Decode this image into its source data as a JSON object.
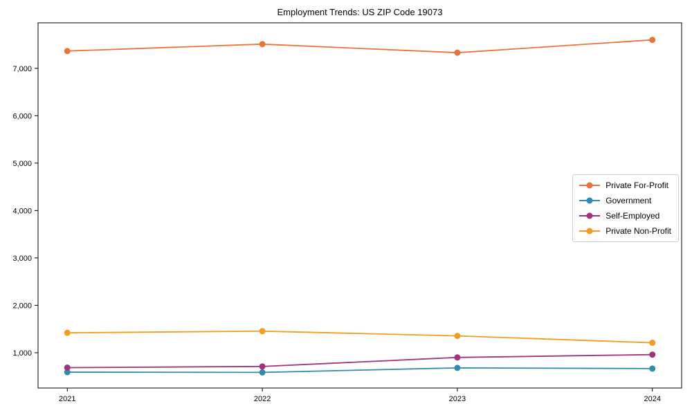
{
  "title": "Employment Trends: US ZIP Code 19073",
  "chart_data": {
    "type": "line",
    "title": "Employment Trends: US ZIP Code 19073",
    "xlabel": "",
    "ylabel": "",
    "x": [
      2021,
      2022,
      2023,
      2024
    ],
    "series": [
      {
        "name": "Private For-Profit",
        "color": "#e8743b",
        "values": [
          7365,
          7510,
          7330,
          7600
        ]
      },
      {
        "name": "Government",
        "color": "#2e8bab",
        "values": [
          590,
          585,
          680,
          665
        ]
      },
      {
        "name": "Self-Employed",
        "color": "#a1337d",
        "values": [
          685,
          710,
          900,
          960
        ]
      },
      {
        "name": "Private Non-Profit",
        "color": "#f39c1f",
        "values": [
          1420,
          1455,
          1355,
          1210
        ]
      }
    ],
    "xlim": [
      2020.85,
      2024.15
    ],
    "ylim": [
      255,
      7960
    ],
    "xticks": [
      2021,
      2022,
      2023,
      2024
    ],
    "xtick_labels": [
      "2021",
      "2022",
      "2023",
      "2024"
    ],
    "yticks": [
      1000,
      2000,
      3000,
      4000,
      5000,
      6000,
      7000
    ],
    "ytick_labels": [
      "1,000",
      "2,000",
      "3,000",
      "4,000",
      "5,000",
      "6,000",
      "7,000"
    ],
    "grid": false,
    "legend_position": "center right",
    "axis_color": "#000000",
    "background_color": "#ffffff",
    "legend_border_color": "#cccccc"
  }
}
